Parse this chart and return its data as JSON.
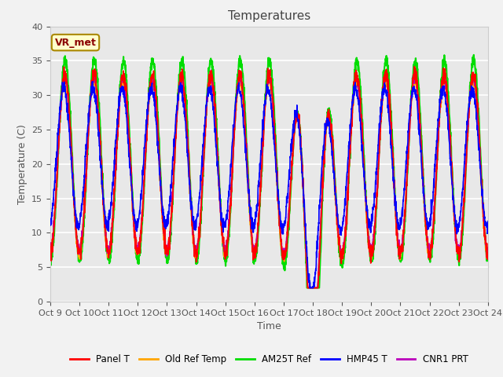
{
  "title": "Temperatures",
  "xlabel": "Time",
  "ylabel": "Temperature (C)",
  "ylim": [
    0,
    40
  ],
  "x_tick_labels": [
    "Oct 9",
    "Oct 10",
    "Oct 11",
    "Oct 12",
    "Oct 13",
    "Oct 14",
    "Oct 15",
    "Oct 16",
    "Oct 17",
    "Oct 18",
    "Oct 19",
    "Oct 20",
    "Oct 21",
    "Oct 22",
    "Oct 23",
    "Oct 24"
  ],
  "legend_labels": [
    "Panel T",
    "Old Ref Temp",
    "AM25T Ref",
    "HMP45 T",
    "CNR1 PRT"
  ],
  "legend_colors": [
    "#ff0000",
    "#ffa500",
    "#00dd00",
    "#0000ff",
    "#bb00bb"
  ],
  "line_widths": [
    1.2,
    1.2,
    1.5,
    1.2,
    1.2
  ],
  "annotation_text": "VR_met",
  "annotation_bg": "#ffffcc",
  "annotation_border": "#aa8800",
  "axes_bg": "#e8e8e8",
  "fig_bg": "#f2f2f2",
  "title_fontsize": 11,
  "label_fontsize": 9,
  "tick_fontsize": 8,
  "yticks": [
    0,
    5,
    10,
    15,
    20,
    25,
    30,
    35,
    40
  ]
}
